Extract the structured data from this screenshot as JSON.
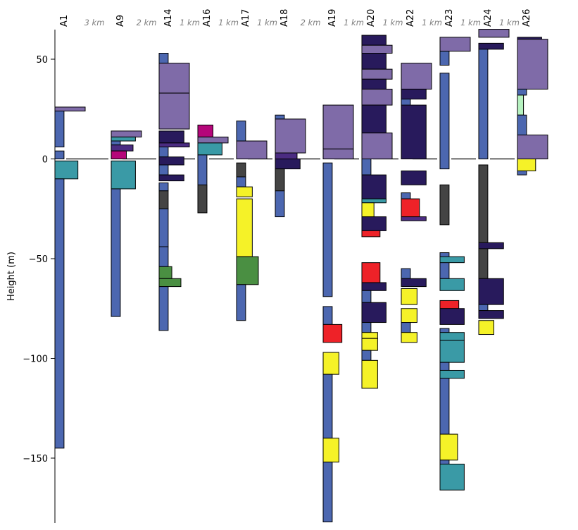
{
  "chart_data": {
    "type": "stratigraphic-column",
    "ylabel": "Height (m)",
    "ylim": [
      -182,
      64
    ],
    "yticks": [
      50,
      0,
      -50,
      -100,
      -150
    ],
    "ytick_labels": [
      "50",
      "0",
      "−50",
      "−100",
      "−150"
    ],
    "colors": {
      "blue": "#4c67b0",
      "teal": "#3a9aa6",
      "lavender": "#7f6ba8",
      "navy": "#281a5c",
      "purple": "#4b2c82",
      "magenta": "#b5067a",
      "gray": "#444444",
      "green": "#4a8f42",
      "yellow": "#f5f228",
      "red": "#ee2228",
      "mint": "#b6f2c0"
    },
    "distances": [
      "3 km",
      "2 km",
      "1 km",
      "1 km",
      "1 km",
      "2 km",
      "1 km",
      "1 km",
      "1 km",
      "1 km",
      "1 km"
    ],
    "wells": [
      {
        "name": "A1",
        "units": [
          {
            "top": 26,
            "bottom": 24,
            "color": "lavender",
            "width": 1
          },
          {
            "top": 24,
            "bottom": 6,
            "color": "blue",
            "width": 0.3
          },
          {
            "top": 4,
            "bottom": 0,
            "color": "blue",
            "width": 0.3
          },
          {
            "top": -1,
            "bottom": -10,
            "color": "teal",
            "width": 0.76
          },
          {
            "top": -10,
            "bottom": -145,
            "color": "blue",
            "width": 0.3
          }
        ]
      },
      {
        "name": "A9",
        "units": [
          {
            "top": 14,
            "bottom": 11,
            "color": "lavender",
            "width": 1
          },
          {
            "top": 11,
            "bottom": 9,
            "color": "teal",
            "width": 0.8
          },
          {
            "top": 9,
            "bottom": 7,
            "color": "blue",
            "width": 0.3
          },
          {
            "top": 7,
            "bottom": 4,
            "color": "purple",
            "width": 0.72
          },
          {
            "top": 4,
            "bottom": 0,
            "color": "magenta",
            "width": 0.5
          },
          {
            "top": -1,
            "bottom": -15,
            "color": "teal",
            "width": 0.8
          },
          {
            "top": -15,
            "bottom": -79,
            "color": "blue",
            "width": 0.3
          }
        ]
      },
      {
        "name": "A14",
        "units": [
          {
            "top": 53,
            "bottom": 48,
            "color": "blue",
            "width": 0.3
          },
          {
            "top": 48,
            "bottom": 33,
            "color": "lavender",
            "width": 1
          },
          {
            "top": 33,
            "bottom": 15,
            "color": "lavender",
            "width": 1
          },
          {
            "top": 14,
            "bottom": 8,
            "color": "navy",
            "width": 0.82
          },
          {
            "top": 8,
            "bottom": 6,
            "color": "purple",
            "width": 1
          },
          {
            "top": 6,
            "bottom": 1,
            "color": "blue",
            "width": 0.3
          },
          {
            "top": 1,
            "bottom": -3,
            "color": "navy",
            "width": 0.82
          },
          {
            "top": -3,
            "bottom": -8,
            "color": "blue",
            "width": 0.3
          },
          {
            "top": -8,
            "bottom": -11,
            "color": "navy",
            "width": 0.82
          },
          {
            "top": -12,
            "bottom": -16,
            "color": "blue",
            "width": 0.3
          },
          {
            "top": -16,
            "bottom": -25,
            "color": "gray",
            "width": 0.3
          },
          {
            "top": -25,
            "bottom": -44,
            "color": "blue",
            "width": 0.3
          },
          {
            "top": -44,
            "bottom": -54,
            "color": "blue",
            "width": 0.3
          },
          {
            "top": -54,
            "bottom": -60,
            "color": "green",
            "width": 0.42
          },
          {
            "top": -60,
            "bottom": -64,
            "color": "green",
            "width": 0.72
          },
          {
            "top": -64,
            "bottom": -86,
            "color": "blue",
            "width": 0.3
          }
        ]
      },
      {
        "name": "A16",
        "units": [
          {
            "top": 17,
            "bottom": 11,
            "color": "magenta",
            "width": 0.5
          },
          {
            "top": 11,
            "bottom": 8,
            "color": "lavender",
            "width": 1
          },
          {
            "top": 8,
            "bottom": 2,
            "color": "teal",
            "width": 0.8
          },
          {
            "top": 2,
            "bottom": -27,
            "color": "blue",
            "width": 0.3
          },
          {
            "top": -13,
            "bottom": -27,
            "color": "gray",
            "width": 0.3
          }
        ]
      },
      {
        "name": "A17",
        "units": [
          {
            "top": 19,
            "bottom": 9,
            "color": "blue",
            "width": 0.3
          },
          {
            "top": 9,
            "bottom": 0,
            "color": "lavender",
            "width": 1
          },
          {
            "top": -2,
            "bottom": -9,
            "color": "gray",
            "width": 0.3
          },
          {
            "top": -9,
            "bottom": -14,
            "color": "blue",
            "width": 0.3
          },
          {
            "top": -14,
            "bottom": -19,
            "color": "yellow",
            "width": 0.52
          },
          {
            "top": -20,
            "bottom": -49,
            "color": "yellow",
            "width": 0.52
          },
          {
            "top": -49,
            "bottom": -63,
            "color": "green",
            "width": 0.72
          },
          {
            "top": -63,
            "bottom": -81,
            "color": "blue",
            "width": 0.3
          }
        ]
      },
      {
        "name": "A18",
        "units": [
          {
            "top": 22,
            "bottom": 20,
            "color": "blue",
            "width": 0.3
          },
          {
            "top": 20,
            "bottom": 3,
            "color": "lavender",
            "width": 1
          },
          {
            "top": 3,
            "bottom": 0,
            "color": "purple",
            "width": 0.72
          },
          {
            "top": 0,
            "bottom": -5,
            "color": "navy",
            "width": 0.82
          },
          {
            "top": -5,
            "bottom": -29,
            "color": "blue",
            "width": 0.3
          },
          {
            "top": -5,
            "bottom": -16,
            "color": "gray",
            "width": 0.3
          }
        ]
      },
      {
        "name": "A19",
        "units": [
          {
            "top": 27,
            "bottom": 5,
            "color": "lavender",
            "width": 1
          },
          {
            "top": 5,
            "bottom": 0,
            "color": "lavender",
            "width": 1
          },
          {
            "top": -2,
            "bottom": -69,
            "color": "blue",
            "width": 0.3
          },
          {
            "top": -74,
            "bottom": -83,
            "color": "blue",
            "width": 0.3
          },
          {
            "top": -83,
            "bottom": -92,
            "color": "red",
            "width": 0.62
          },
          {
            "top": -97,
            "bottom": -108,
            "color": "yellow",
            "width": 0.52
          },
          {
            "top": -108,
            "bottom": -140,
            "color": "blue",
            "width": 0.3
          },
          {
            "top": -140,
            "bottom": -152,
            "color": "yellow",
            "width": 0.52
          },
          {
            "top": -152,
            "bottom": -182,
            "color": "blue",
            "width": 0.3
          }
        ]
      },
      {
        "name": "A20",
        "units": [
          {
            "top": 62,
            "bottom": 57,
            "color": "navy",
            "width": 0.8
          },
          {
            "top": 57,
            "bottom": 53,
            "color": "lavender",
            "width": 1
          },
          {
            "top": 53,
            "bottom": 45,
            "color": "navy",
            "width": 0.8
          },
          {
            "top": 45,
            "bottom": 40,
            "color": "lavender",
            "width": 1
          },
          {
            "top": 40,
            "bottom": 35,
            "color": "navy",
            "width": 0.8
          },
          {
            "top": 35,
            "bottom": 27,
            "color": "lavender",
            "width": 1
          },
          {
            "top": 27,
            "bottom": 13,
            "color": "navy",
            "width": 0.8
          },
          {
            "top": 13,
            "bottom": 0,
            "color": "lavender",
            "width": 1
          },
          {
            "top": 0,
            "bottom": -8,
            "color": "blue",
            "width": 0.3
          },
          {
            "top": -8,
            "bottom": -20,
            "color": "navy",
            "width": 0.8
          },
          {
            "top": -20,
            "bottom": -22,
            "color": "teal",
            "width": 0.8
          },
          {
            "top": -22,
            "bottom": -29,
            "color": "yellow",
            "width": 0.4
          },
          {
            "top": -29,
            "bottom": -36,
            "color": "navy",
            "width": 0.8
          },
          {
            "top": -36,
            "bottom": -39,
            "color": "red",
            "width": 0.6
          },
          {
            "top": -52,
            "bottom": -62,
            "color": "red",
            "width": 0.6
          },
          {
            "top": -62,
            "bottom": -66,
            "color": "navy",
            "width": 0.8
          },
          {
            "top": -66,
            "bottom": -72,
            "color": "blue",
            "width": 0.3
          },
          {
            "top": -72,
            "bottom": -82,
            "color": "navy",
            "width": 0.8
          },
          {
            "top": -82,
            "bottom": -87,
            "color": "blue",
            "width": 0.3
          },
          {
            "top": -87,
            "bottom": -90,
            "color": "yellow",
            "width": 0.52
          },
          {
            "top": -90,
            "bottom": -96,
            "color": "yellow",
            "width": 0.52
          },
          {
            "top": -96,
            "bottom": -101,
            "color": "blue",
            "width": 0.3
          },
          {
            "top": -101,
            "bottom": -115,
            "color": "yellow",
            "width": 0.52
          }
        ]
      },
      {
        "name": "A22",
        "units": [
          {
            "top": 48,
            "bottom": 35,
            "color": "lavender",
            "width": 1
          },
          {
            "top": 35,
            "bottom": 30,
            "color": "navy",
            "width": 0.82
          },
          {
            "top": 30,
            "bottom": 0,
            "color": "blue",
            "width": 0.3
          },
          {
            "top": 27,
            "bottom": 0,
            "color": "navy",
            "width": 0.82
          },
          {
            "top": -6,
            "bottom": -13,
            "color": "navy",
            "width": 0.82
          },
          {
            "top": -17,
            "bottom": -20,
            "color": "blue",
            "width": 0.3
          },
          {
            "top": -20,
            "bottom": -29,
            "color": "red",
            "width": 0.6
          },
          {
            "top": -29,
            "bottom": -31,
            "color": "purple",
            "width": 0.82
          },
          {
            "top": -55,
            "bottom": -60,
            "color": "blue",
            "width": 0.3
          },
          {
            "top": -60,
            "bottom": -64,
            "color": "navy",
            "width": 0.82
          },
          {
            "top": -65,
            "bottom": -73,
            "color": "yellow",
            "width": 0.52
          },
          {
            "top": -75,
            "bottom": -82,
            "color": "yellow",
            "width": 0.52
          },
          {
            "top": -82,
            "bottom": -87,
            "color": "blue",
            "width": 0.3
          },
          {
            "top": -87,
            "bottom": -92,
            "color": "yellow",
            "width": 0.52
          }
        ]
      },
      {
        "name": "A23",
        "units": [
          {
            "top": 61,
            "bottom": 54,
            "color": "lavender",
            "width": 1
          },
          {
            "top": 54,
            "bottom": 47,
            "color": "blue",
            "width": 0.3
          },
          {
            "top": 43,
            "bottom": -5,
            "color": "blue",
            "width": 0.3
          },
          {
            "top": -13,
            "bottom": -33,
            "color": "gray",
            "width": 0.3
          },
          {
            "top": -47,
            "bottom": -60,
            "color": "blue",
            "width": 0.3
          },
          {
            "top": -49,
            "bottom": -52,
            "color": "teal",
            "width": 0.8
          },
          {
            "top": -60,
            "bottom": -66,
            "color": "teal",
            "width": 0.8
          },
          {
            "top": -71,
            "bottom": -75,
            "color": "red",
            "width": 0.62
          },
          {
            "top": -75,
            "bottom": -83,
            "color": "navy",
            "width": 0.8
          },
          {
            "top": -85,
            "bottom": -87,
            "color": "blue",
            "width": 0.3
          },
          {
            "top": -87,
            "bottom": -91,
            "color": "teal",
            "width": 0.8
          },
          {
            "top": -91,
            "bottom": -102,
            "color": "teal",
            "width": 0.8
          },
          {
            "top": -102,
            "bottom": -106,
            "color": "blue",
            "width": 0.3
          },
          {
            "top": -106,
            "bottom": -110,
            "color": "teal",
            "width": 0.8
          },
          {
            "top": -110,
            "bottom": -138,
            "color": "blue",
            "width": 0.3
          },
          {
            "top": -138,
            "bottom": -151,
            "color": "yellow",
            "width": 0.58
          },
          {
            "top": -151,
            "bottom": -153,
            "color": "blue",
            "width": 0.3
          },
          {
            "top": -153,
            "bottom": -166,
            "color": "teal",
            "width": 0.8
          }
        ]
      },
      {
        "name": "A24",
        "units": [
          {
            "top": 65,
            "bottom": 61,
            "color": "lavender",
            "width": 1
          },
          {
            "top": 58,
            "bottom": 55,
            "color": "navy",
            "width": 0.82
          },
          {
            "top": 55,
            "bottom": 0,
            "color": "blue",
            "width": 0.3
          },
          {
            "top": -3,
            "bottom": -60,
            "color": "gray",
            "width": 0.3
          },
          {
            "top": -42,
            "bottom": -45,
            "color": "navy",
            "width": 0.82
          },
          {
            "top": -60,
            "bottom": -73,
            "color": "navy",
            "width": 0.82
          },
          {
            "top": -73,
            "bottom": -76,
            "color": "blue",
            "width": 0.3
          },
          {
            "top": -76,
            "bottom": -80,
            "color": "navy",
            "width": 0.82
          },
          {
            "top": -81,
            "bottom": -88,
            "color": "yellow",
            "width": 0.5
          }
        ]
      },
      {
        "name": "A26",
        "units": [
          {
            "top": 61,
            "bottom": 60,
            "color": "navy",
            "width": 0.8
          },
          {
            "top": 60,
            "bottom": 35,
            "color": "lavender",
            "width": 1
          },
          {
            "top": 35,
            "bottom": 32,
            "color": "blue",
            "width": 0.3
          },
          {
            "top": 32,
            "bottom": 22,
            "color": "mint",
            "width": 0.2
          },
          {
            "top": 22,
            "bottom": 12,
            "color": "blue",
            "width": 0.3
          },
          {
            "top": 12,
            "bottom": 0,
            "color": "lavender",
            "width": 1
          },
          {
            "top": 0,
            "bottom": -6,
            "color": "yellow",
            "width": 0.6
          },
          {
            "top": -6,
            "bottom": -8,
            "color": "blue",
            "width": 0.3
          }
        ]
      }
    ]
  }
}
